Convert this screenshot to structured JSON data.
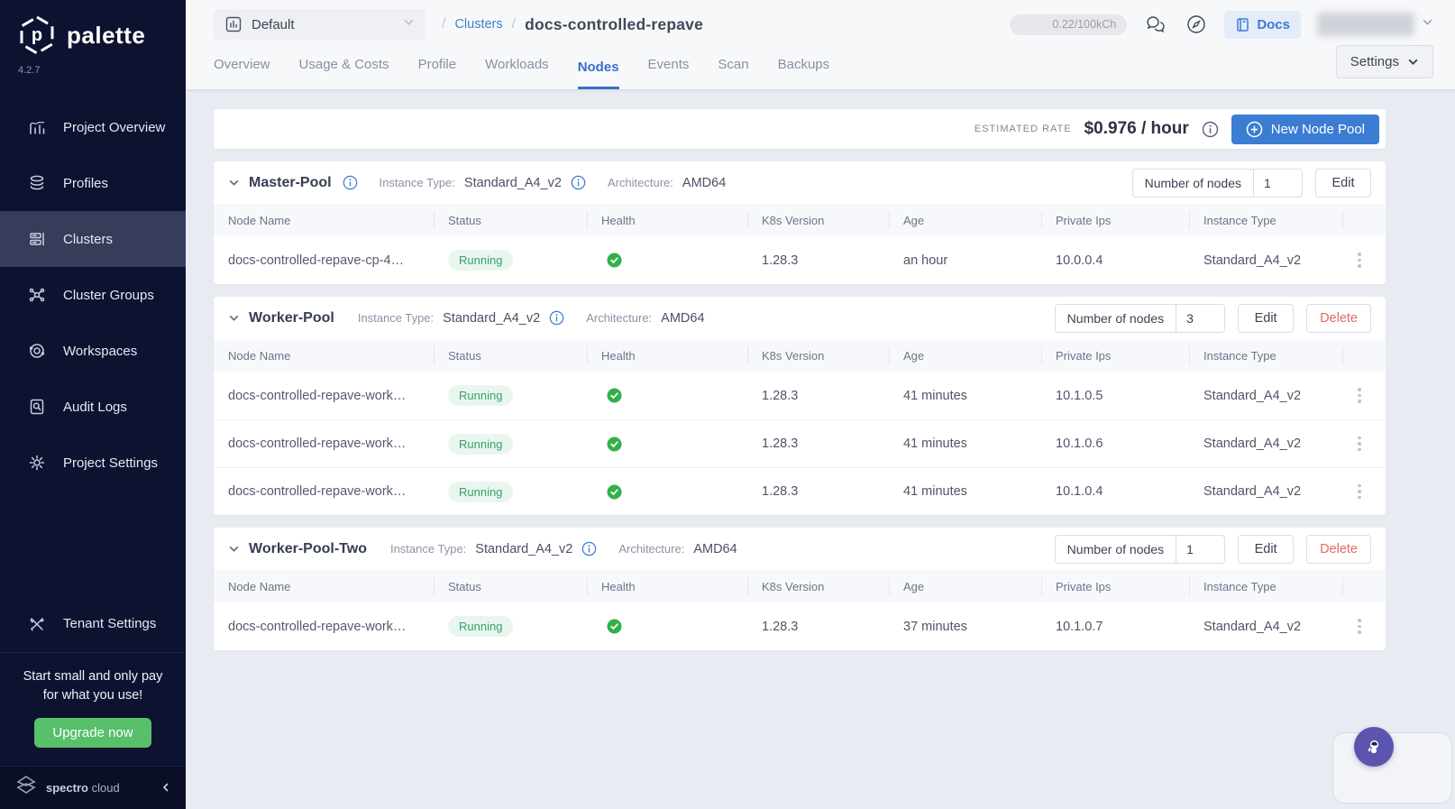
{
  "sidebar": {
    "brand": {
      "name": "palette",
      "version": "4.2.7"
    },
    "items": [
      {
        "label": "Project Overview",
        "icon": "project-overview",
        "active": false
      },
      {
        "label": "Profiles",
        "icon": "profiles",
        "active": false
      },
      {
        "label": "Clusters",
        "icon": "clusters",
        "active": true
      },
      {
        "label": "Cluster Groups",
        "icon": "cluster-groups",
        "active": false
      },
      {
        "label": "Workspaces",
        "icon": "workspaces",
        "active": false
      },
      {
        "label": "Audit Logs",
        "icon": "audit-logs",
        "active": false
      },
      {
        "label": "Project Settings",
        "icon": "project-settings",
        "active": false
      },
      {
        "label": "Tenant Settings",
        "icon": "tenant-settings",
        "active": false,
        "bottom": true
      }
    ],
    "promo": {
      "line1": "Start small and only pay",
      "line2": "for what you use!",
      "button_label": "Upgrade now"
    },
    "footer": {
      "brand_bold": "spectro",
      "brand_light": "cloud"
    }
  },
  "header": {
    "project_selector": "Default",
    "breadcrumb": {
      "section": "Clusters",
      "current": "docs-controlled-repave"
    },
    "usage_counter": "0.22/100kCh",
    "docs_label": "Docs"
  },
  "tabs": {
    "items": [
      "Overview",
      "Usage & Costs",
      "Profile",
      "Workloads",
      "Nodes",
      "Events",
      "Scan",
      "Backups"
    ],
    "active": "Nodes",
    "settings_label": "Settings"
  },
  "rate_bar": {
    "label": "ESTIMATED RATE",
    "value": "$0.976 / hour",
    "new_pool_button": "New Node Pool"
  },
  "labels": {
    "instance_type": "Instance Type:",
    "architecture": "Architecture:",
    "number_of_nodes": "Number of nodes",
    "edit": "Edit",
    "delete": "Delete"
  },
  "table_columns": [
    "Node Name",
    "Status",
    "Health",
    "K8s Version",
    "Age",
    "Private Ips",
    "Instance Type"
  ],
  "pools": [
    {
      "name": "Master-Pool",
      "name_info": true,
      "instance_type": "Standard_A4_v2",
      "architecture": "AMD64",
      "nodes_count": "1",
      "deletable": false,
      "rows": [
        {
          "name": "docs-controlled-repave-cp-4…",
          "status": "Running",
          "healthy": true,
          "k8s_version": "1.28.3",
          "age": "an hour",
          "private_ip": "10.0.0.4",
          "instance_type": "Standard_A4_v2"
        }
      ]
    },
    {
      "name": "Worker-Pool",
      "name_info": false,
      "instance_type": "Standard_A4_v2",
      "architecture": "AMD64",
      "nodes_count": "3",
      "deletable": true,
      "rows": [
        {
          "name": "docs-controlled-repave-work…",
          "status": "Running",
          "healthy": true,
          "k8s_version": "1.28.3",
          "age": "41 minutes",
          "private_ip": "10.1.0.5",
          "instance_type": "Standard_A4_v2"
        },
        {
          "name": "docs-controlled-repave-work…",
          "status": "Running",
          "healthy": true,
          "k8s_version": "1.28.3",
          "age": "41 minutes",
          "private_ip": "10.1.0.6",
          "instance_type": "Standard_A4_v2"
        },
        {
          "name": "docs-controlled-repave-work…",
          "status": "Running",
          "healthy": true,
          "k8s_version": "1.28.3",
          "age": "41 minutes",
          "private_ip": "10.1.0.4",
          "instance_type": "Standard_A4_v2"
        }
      ]
    },
    {
      "name": "Worker-Pool-Two",
      "name_info": false,
      "instance_type": "Standard_A4_v2",
      "architecture": "AMD64",
      "nodes_count": "1",
      "deletable": true,
      "rows": [
        {
          "name": "docs-controlled-repave-work…",
          "status": "Running",
          "healthy": true,
          "k8s_version": "1.28.3",
          "age": "37 minutes",
          "private_ip": "10.1.0.7",
          "instance_type": "Standard_A4_v2"
        }
      ]
    }
  ],
  "colors": {
    "accent_blue": "#3a78d0",
    "sidebar_bg": "#0d1230",
    "success_green": "#36a168",
    "delete_red": "#dc6e61",
    "upgrade_green": "#58bf6a",
    "fab_purple": "#5b55b0"
  }
}
